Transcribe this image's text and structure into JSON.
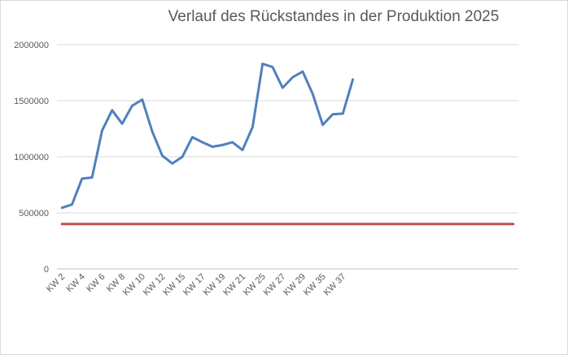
{
  "chart_data": {
    "type": "line",
    "title": "Verlauf des Rückstandes in der Produktion 2025",
    "xlabel": "",
    "ylabel": "",
    "ylim": [
      0,
      2000000
    ],
    "yticks": [
      "0",
      "500000",
      "1000000",
      "1500000",
      "2000000"
    ],
    "grid": true,
    "legend": "none",
    "xtick_labels": [
      "KW 2",
      "KW 4",
      "KW 6",
      "KW 8",
      "KW 10",
      "KW 12",
      "KW 15",
      "KW 17",
      "KW 19",
      "KW 21",
      "KW 25",
      "KW 27",
      "KW 29",
      "KW 35",
      "KW 37"
    ],
    "categories_count": 46,
    "series": [
      {
        "color": "#4f81bd",
        "values": [
          545000,
          575000,
          805000,
          815000,
          1235000,
          1415000,
          1295000,
          1455000,
          1510000,
          1225000,
          1010000,
          940000,
          1000000,
          1175000,
          1130000,
          1090000,
          1105000,
          1130000,
          1060000,
          1265000,
          1830000,
          1800000,
          1615000,
          1710000,
          1760000,
          1560000,
          1285000,
          1380000,
          1385000,
          1690000
        ]
      },
      {
        "color": "#c0504d",
        "values": [
          400000,
          400000,
          400000,
          400000,
          400000,
          400000,
          400000,
          400000,
          400000,
          400000,
          400000,
          400000,
          400000,
          400000,
          400000,
          400000,
          400000,
          400000,
          400000,
          400000,
          400000,
          400000,
          400000,
          400000,
          400000,
          400000,
          400000,
          400000,
          400000,
          400000,
          400000,
          400000,
          400000,
          400000,
          400000,
          400000,
          400000,
          400000,
          400000,
          400000,
          400000,
          400000,
          400000,
          400000,
          400000,
          400000
        ]
      }
    ]
  }
}
